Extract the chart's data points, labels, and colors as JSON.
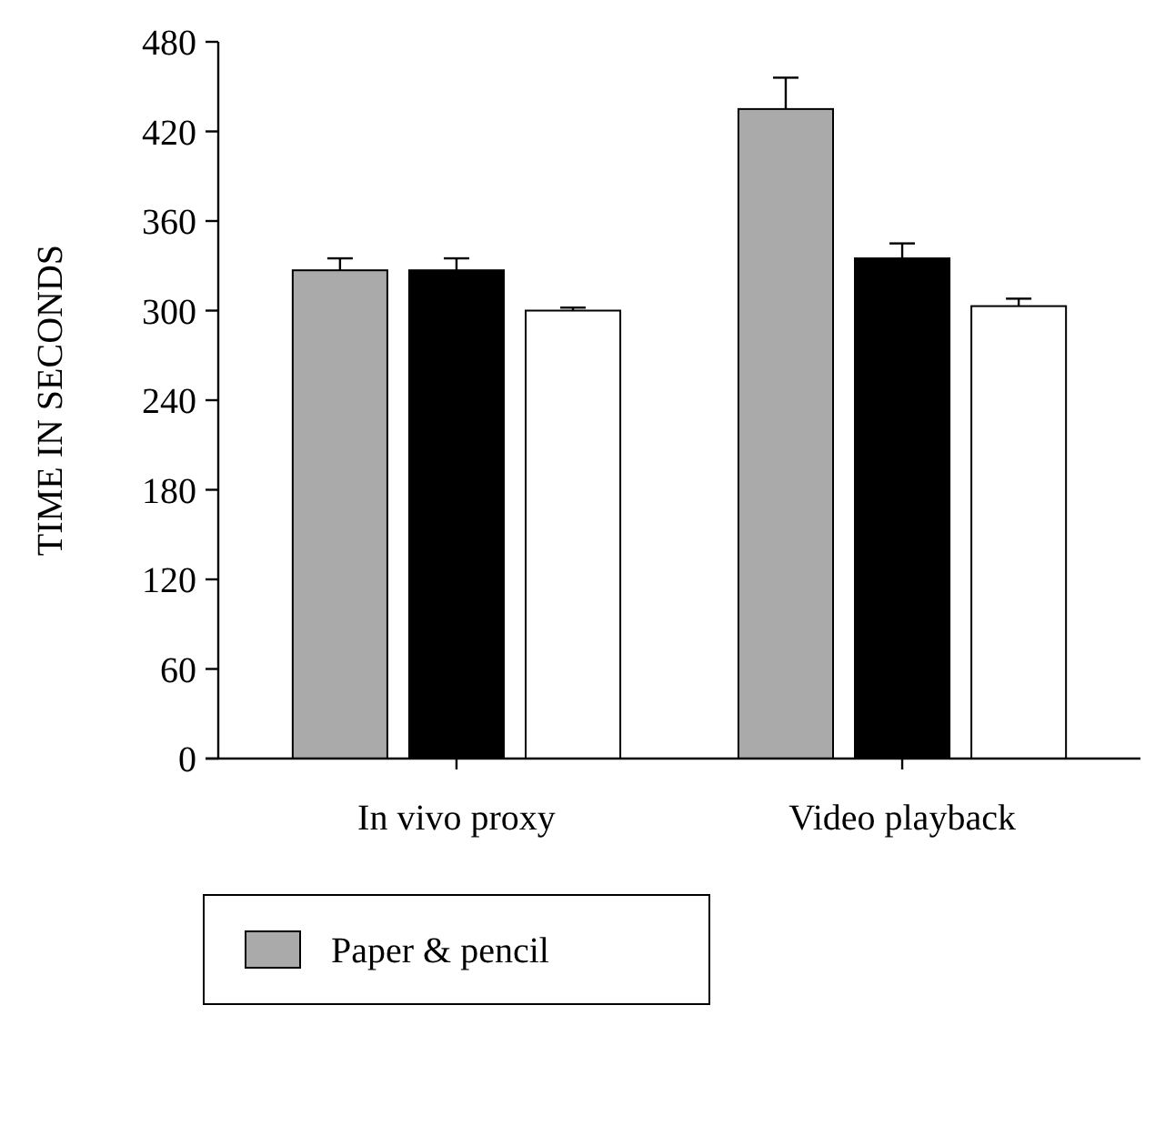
{
  "chart_data": {
    "type": "bar",
    "ylabel": "TIME IN SECONDS",
    "categories": [
      "In vivo proxy",
      "Video playback"
    ],
    "series": [
      {
        "name": "Paper & pencil",
        "color": "#aaaaaa",
        "values": [
          327,
          435
        ],
        "errors": [
          [
            327,
            335
          ],
          [
            435,
            456
          ]
        ]
      },
      {
        "color": "#000000",
        "values": [
          327,
          335
        ],
        "errors": [
          [
            327,
            335
          ],
          [
            335,
            345
          ]
        ]
      },
      {
        "color": "#ffffff",
        "values": [
          300,
          303
        ],
        "errors": [
          [
            300,
            302
          ],
          [
            303,
            308
          ]
        ]
      }
    ],
    "ylim": [
      0,
      480
    ],
    "yticks": [
      0,
      60,
      120,
      180,
      240,
      300,
      360,
      420,
      480
    ],
    "legend": "bottom left"
  }
}
